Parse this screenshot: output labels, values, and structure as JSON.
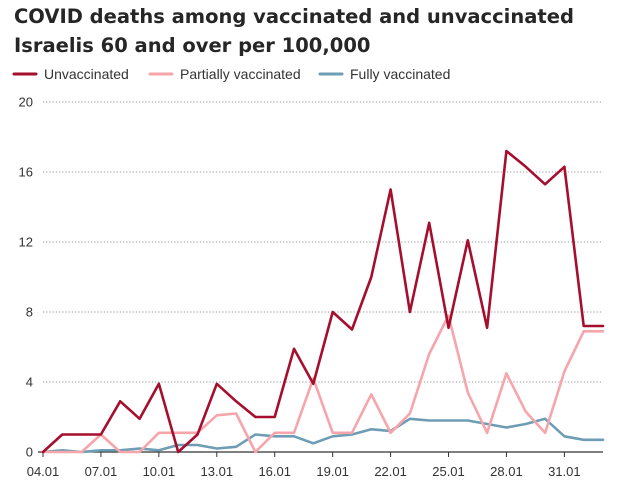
{
  "chart_data": {
    "type": "line",
    "title_lines": [
      "COVID deaths among vaccinated and unvaccinated",
      "Israelis 60 and over per 100,000"
    ],
    "xlabel": "",
    "ylabel": "",
    "ylim": [
      0,
      20
    ],
    "yticks": [
      0,
      4,
      8,
      12,
      16,
      20
    ],
    "x": [
      "04.01",
      "05.01",
      "06.01",
      "07.01",
      "08.01",
      "09.01",
      "10.01",
      "11.01",
      "12.01",
      "13.01",
      "14.01",
      "15.01",
      "16.01",
      "17.01",
      "18.01",
      "19.01",
      "20.01",
      "21.01",
      "22.01",
      "23.01",
      "24.01",
      "25.01",
      "26.01",
      "27.01",
      "28.01",
      "29.01",
      "30.01",
      "31.01",
      "01.02",
      "02.02"
    ],
    "xtick_labels": [
      "04.01",
      "07.01",
      "10.01",
      "13.01",
      "16.01",
      "19.01",
      "22.01",
      "25.01",
      "28.01",
      "31.01"
    ],
    "xtick_indices": [
      0,
      3,
      6,
      9,
      12,
      15,
      18,
      21,
      24,
      27
    ],
    "grid": "horizontal-dotted",
    "legend_position": "top",
    "series": [
      {
        "name": "Unvaccinated",
        "color": "#a50f2d",
        "values": [
          0,
          1,
          1,
          1,
          2.9,
          1.9,
          3.9,
          0,
          1,
          3.9,
          2.9,
          2,
          2,
          5.9,
          3.9,
          8,
          7,
          10,
          15,
          8,
          13.1,
          7.1,
          12.1,
          7.1,
          17.2,
          16.3,
          15.3,
          16.3,
          7.2,
          7.2
        ]
      },
      {
        "name": "Partially vaccinated",
        "color": "#f6a5ab",
        "values": [
          0,
          0,
          0,
          1,
          0,
          0,
          1.1,
          1.1,
          1.1,
          2.1,
          2.2,
          0,
          1.1,
          1.1,
          4.2,
          1.1,
          1.1,
          3.3,
          1.1,
          2.2,
          5.6,
          7.8,
          3.4,
          1.1,
          4.5,
          2.3,
          1.1,
          4.6,
          6.9,
          6.9
        ]
      },
      {
        "name": "Fully vaccinated",
        "color": "#6d9db5",
        "values": [
          0,
          0.1,
          0,
          0.1,
          0.1,
          0.2,
          0.1,
          0.4,
          0.4,
          0.2,
          0.3,
          1,
          0.9,
          0.9,
          0.5,
          0.9,
          1,
          1.3,
          1.2,
          1.9,
          1.8,
          1.8,
          1.8,
          1.6,
          1.4,
          1.6,
          1.9,
          0.9,
          0.7,
          0.7
        ]
      }
    ]
  }
}
